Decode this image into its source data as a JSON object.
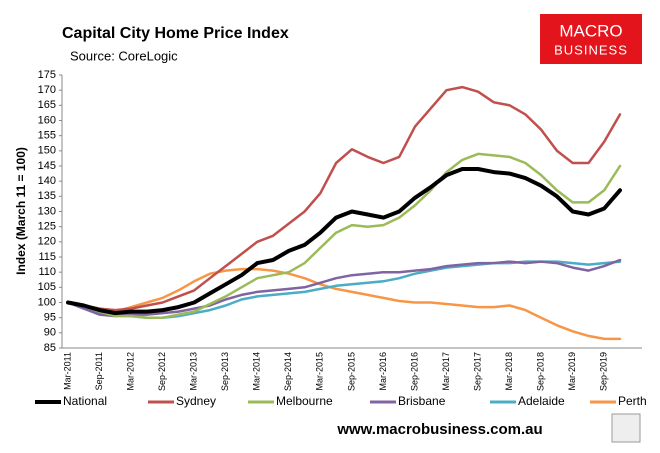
{
  "chart_data": {
    "type": "line",
    "title": "Capital City Home Price Index",
    "subtitle": "Source: CoreLogic",
    "y_label": "Index (March 11 = 100)",
    "categories": [
      "Mar-2011",
      null,
      "Sep-2011",
      null,
      "Mar-2012",
      null,
      "Sep-2012",
      null,
      "Mar-2013",
      null,
      "Sep-2013",
      null,
      "Mar-2014",
      null,
      "Sep-2014",
      null,
      "Mar-2015",
      null,
      "Sep-2015",
      null,
      "Mar-2016",
      null,
      "Sep-2016",
      null,
      "Mar-2017",
      null,
      "Sep-2017",
      null,
      "Mar-2018",
      null,
      "Sep-2018",
      null,
      "Mar-2019",
      null,
      "Sep-2019",
      null
    ],
    "series": [
      {
        "name": "National",
        "color": "#000000",
        "values": [
          100,
          99,
          97.5,
          96.5,
          97,
          97,
          97.5,
          98.5,
          100,
          103,
          106,
          109,
          113,
          114,
          117,
          119,
          123,
          128,
          130,
          129,
          128,
          130,
          134.5,
          138,
          142,
          144,
          144,
          143,
          142.5,
          141,
          138.5,
          135,
          130,
          129,
          131,
          137
        ]
      },
      {
        "name": "Sydney",
        "color": "#c0504d",
        "values": [
          100,
          99,
          98,
          97.5,
          98,
          99,
          100,
          102,
          104,
          108,
          112,
          116,
          120,
          122,
          126,
          130,
          136,
          146,
          150.5,
          148,
          146,
          148,
          158,
          164,
          170,
          171,
          169.5,
          166,
          165,
          162,
          157,
          150,
          146,
          146,
          153,
          162
        ]
      },
      {
        "name": "Melbourne",
        "color": "#9bbb59",
        "values": [
          100,
          99,
          97,
          95.5,
          95.5,
          95,
          95,
          96,
          97,
          99.5,
          102,
          105,
          108,
          109,
          110,
          113,
          118,
          123,
          125.5,
          125,
          125.5,
          128,
          132,
          137,
          143,
          147,
          149,
          148.5,
          148,
          146,
          142,
          137,
          133,
          133,
          137,
          145
        ]
      },
      {
        "name": "Brisbane",
        "color": "#8064a2",
        "values": [
          100,
          98,
          96,
          95.5,
          96,
          96,
          96.5,
          97,
          98,
          99,
          101,
          102.5,
          103.5,
          104,
          104.5,
          105,
          106.5,
          108,
          109,
          109.5,
          110,
          110,
          110.5,
          111,
          112,
          112.5,
          113,
          113,
          113.5,
          113,
          113.5,
          113,
          111.5,
          110.5,
          112,
          114
        ]
      },
      {
        "name": "Adelaide",
        "color": "#4bacc6",
        "values": [
          100,
          98,
          96.5,
          96,
          95.5,
          95,
          95,
          95.5,
          96.5,
          97.5,
          99,
          101,
          102,
          102.5,
          103,
          103.5,
          104.5,
          105.5,
          106,
          106.5,
          107,
          108,
          109.5,
          110.5,
          111.5,
          112,
          112.5,
          113,
          113,
          113.5,
          113.5,
          113.5,
          113,
          112.5,
          113,
          113.5
        ]
      },
      {
        "name": "Perth",
        "color": "#f79646",
        "values": [
          100,
          99,
          98,
          97,
          98.5,
          100,
          101.5,
          104,
          107,
          109.5,
          110.5,
          111,
          111,
          110.5,
          109.5,
          108,
          106,
          104.5,
          103.5,
          102.5,
          101.5,
          100.5,
          100,
          100,
          99.5,
          99,
          98.5,
          98.5,
          99,
          97.5,
          95,
          92.5,
          90.5,
          89,
          88,
          88
        ]
      }
    ],
    "ylim": [
      85,
      175
    ],
    "yticks": [
      85,
      90,
      95,
      100,
      105,
      110,
      115,
      120,
      125,
      130,
      135,
      140,
      145,
      150,
      155,
      160,
      165,
      170,
      175
    ],
    "grid": false
  },
  "logo": {
    "line1": "MACRO",
    "line2": "BUSINESS"
  },
  "footer": "www.macrobusiness.com.au"
}
